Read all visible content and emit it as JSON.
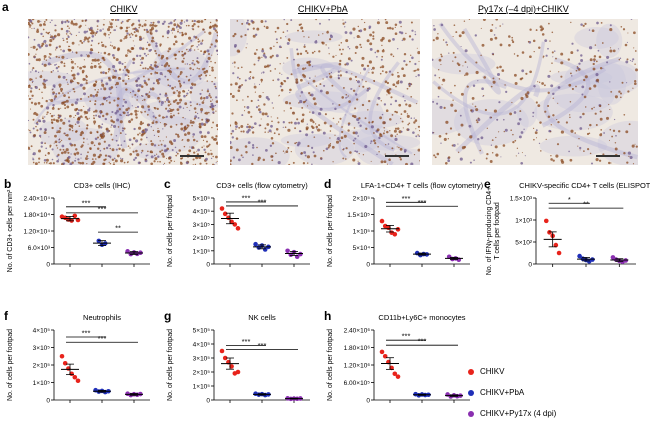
{
  "figure": {
    "panel_a_letter": "a",
    "micrographs": [
      {
        "label": "CHIKV",
        "tone": "dense"
      },
      {
        "label": "CHIKV+PbA",
        "tone": "medium"
      },
      {
        "label": "Py17x (–4 dpi)+CHIKV",
        "tone": "sparse"
      }
    ],
    "legend": [
      {
        "label": "CHIKV",
        "color": "#e8231b"
      },
      {
        "label": "CHIKV+PbA",
        "color": "#1f2fb8"
      },
      {
        "label": "CHIKV+Py17x (4 dpi)",
        "color": "#8a2fb0"
      }
    ]
  },
  "chart_data": [
    {
      "letter": "b",
      "type": "scatter",
      "title": "CD3+ cells (IHC)",
      "ylabel": "No. of CD3+ cells per mm²",
      "yticks": [
        "0",
        "6.0×10³",
        "1.20×10⁴",
        "1.80×10⁴",
        "2.40×10⁴"
      ],
      "ytick_values": [
        0,
        6000,
        12000,
        18000,
        24000
      ],
      "ylim": [
        0,
        24000
      ],
      "groups": [
        {
          "color": "#e8231b",
          "mean": 16500,
          "sem": 800,
          "points": [
            17200,
            16800,
            16200,
            15800,
            17500,
            16000
          ]
        },
        {
          "color": "#1f2fb8",
          "mean": 7600,
          "sem": 900,
          "points": [
            8400,
            7000,
            7500
          ]
        },
        {
          "color": "#8a2fb0",
          "mean": 4000,
          "sem": 500,
          "points": [
            4600,
            3600,
            4200,
            3700,
            4100
          ]
        }
      ],
      "significance": [
        {
          "from": 0,
          "to": 1,
          "label": "***",
          "y": 20800
        },
        {
          "from": 0,
          "to": 2,
          "label": "***",
          "y": 18600
        },
        {
          "from": 1,
          "to": 2,
          "label": "**",
          "y": 11600
        }
      ]
    },
    {
      "letter": "c",
      "type": "scatter",
      "title": "CD3+ cells (flow cytometry)",
      "ylabel": "No. of cells per footpad",
      "yticks": [
        "0",
        "1×10⁵",
        "2×10⁵",
        "3×10⁵",
        "4×10⁵",
        "5×10⁵"
      ],
      "ytick_values": [
        0,
        100000,
        200000,
        300000,
        400000,
        500000
      ],
      "ylim": [
        0,
        500000
      ],
      "groups": [
        {
          "color": "#e8231b",
          "mean": 345000,
          "sem": 40000,
          "points": [
            420000,
            380000,
            350000,
            320000,
            300000,
            270000
          ]
        },
        {
          "color": "#1f2fb8",
          "mean": 130000,
          "sem": 15000,
          "points": [
            150000,
            125000,
            140000,
            110000,
            130000
          ]
        },
        {
          "color": "#8a2fb0",
          "mean": 80000,
          "sem": 15000,
          "points": [
            100000,
            70000,
            90000,
            55000,
            75000
          ]
        }
      ],
      "significance": [
        {
          "from": 0,
          "to": 1,
          "label": "***",
          "y": 470000
        },
        {
          "from": 0,
          "to": 2,
          "label": "***",
          "y": 440000
        }
      ]
    },
    {
      "letter": "d",
      "type": "scatter",
      "title": "LFA-1+CD4+ T cells (flow cytometry)",
      "ylabel": "No. of cells per footpad",
      "yticks": [
        "0",
        "5×10⁴",
        "1×10⁵",
        "1.5×10⁵",
        "2×10⁵"
      ],
      "ytick_values": [
        0,
        50000,
        100000,
        150000,
        200000
      ],
      "ylim": [
        0,
        200000
      ],
      "groups": [
        {
          "color": "#e8231b",
          "mean": 107000,
          "sem": 10000,
          "points": [
            130000,
            115000,
            110000,
            95000,
            90000,
            105000
          ]
        },
        {
          "color": "#1f2fb8",
          "mean": 30000,
          "sem": 3000,
          "points": [
            33000,
            27000,
            30000,
            29000
          ]
        },
        {
          "color": "#8a2fb0",
          "mean": 17000,
          "sem": 3000,
          "points": [
            22000,
            15000,
            17000,
            13000
          ]
        }
      ],
      "significance": [
        {
          "from": 0,
          "to": 1,
          "label": "***",
          "y": 187000
        },
        {
          "from": 0,
          "to": 2,
          "label": "***",
          "y": 175000
        }
      ]
    },
    {
      "letter": "e",
      "type": "scatter",
      "title": "CHIKV-specific CD4+ T cells (ELISPOT)",
      "ylabel": "No. of IFNγ-producing CD4+ T cells per footpad",
      "yticks": [
        "0",
        "5×10²",
        "1×10³",
        "1.5×10³"
      ],
      "ytick_values": [
        0,
        500,
        1000,
        1500
      ],
      "ylim": [
        0,
        1500
      ],
      "groups": [
        {
          "color": "#e8231b",
          "mean": 560,
          "sem": 170,
          "points": [
            980,
            720,
            640,
            430,
            250
          ]
        },
        {
          "color": "#1f2fb8",
          "mean": 110,
          "sem": 40,
          "points": [
            180,
            120,
            90,
            60,
            100
          ]
        },
        {
          "color": "#8a2fb0",
          "mean": 90,
          "sem": 30,
          "points": [
            150,
            100,
            70,
            50,
            80
          ]
        }
      ],
      "significance": [
        {
          "from": 0,
          "to": 1,
          "label": "*",
          "y": 1380
        },
        {
          "from": 0,
          "to": 2,
          "label": "**",
          "y": 1270
        }
      ]
    },
    {
      "letter": "f",
      "type": "scatter",
      "title": "Neutrophils",
      "ylabel": "No. of cells per footpad",
      "yticks": [
        "0",
        "1×10⁵",
        "2×10⁵",
        "3×10⁵",
        "4×10⁵"
      ],
      "ytick_values": [
        0,
        100000,
        200000,
        300000,
        400000
      ],
      "ylim": [
        0,
        400000
      ],
      "groups": [
        {
          "color": "#e8231b",
          "mean": 175000,
          "sem": 30000,
          "points": [
            250000,
            210000,
            180000,
            150000,
            130000,
            110000
          ]
        },
        {
          "color": "#1f2fb8",
          "mean": 50000,
          "sem": 5000,
          "points": [
            56000,
            48000,
            52000,
            45000,
            50000
          ]
        },
        {
          "color": "#8a2fb0",
          "mean": 32000,
          "sem": 5000,
          "points": [
            36000,
            28000,
            33000,
            30000,
            34000
          ]
        }
      ],
      "significance": [
        {
          "from": 0,
          "to": 1,
          "label": "***",
          "y": 360000
        },
        {
          "from": 0,
          "to": 2,
          "label": "***",
          "y": 330000
        }
      ]
    },
    {
      "letter": "g",
      "type": "scatter",
      "title": "NK cells",
      "ylabel": "No. of cells per footpad",
      "yticks": [
        "0",
        "1×10⁵",
        "2×10⁵",
        "3×10⁵",
        "4×10⁵",
        "5×10⁵"
      ],
      "ytick_values": [
        0,
        100000,
        200000,
        300000,
        400000,
        500000
      ],
      "ylim": [
        0,
        500000
      ],
      "groups": [
        {
          "color": "#e8231b",
          "mean": 260000,
          "sem": 40000,
          "points": [
            350000,
            300000,
            270000,
            240000,
            190000,
            200000
          ]
        },
        {
          "color": "#1f2fb8",
          "mean": 40000,
          "sem": 5000,
          "points": [
            45000,
            38000,
            42000,
            35000,
            40000
          ]
        },
        {
          "color": "#8a2fb0",
          "mean": 10000,
          "sem": 3000,
          "points": [
            12000,
            8000,
            10000,
            9000,
            11000
          ]
        }
      ],
      "significance": [
        {
          "from": 0,
          "to": 1,
          "label": "***",
          "y": 390000
        },
        {
          "from": 0,
          "to": 2,
          "label": "***",
          "y": 360000
        }
      ]
    },
    {
      "letter": "h",
      "type": "scatter",
      "title": "CD11b+Ly6C+ monocytes",
      "ylabel": "No. of cells per footpad",
      "yticks": [
        "0",
        "6.00×10⁵",
        "1.20×10⁶",
        "1.80×10⁶",
        "2.40×10⁶"
      ],
      "ytick_values": [
        0,
        600000,
        1200000,
        1800000,
        2400000
      ],
      "ylim": [
        0,
        2400000
      ],
      "groups": [
        {
          "color": "#e8231b",
          "mean": 1250000,
          "sem": 200000,
          "points": [
            1650000,
            1500000,
            1300000,
            1100000,
            900000,
            800000
          ]
        },
        {
          "color": "#1f2fb8",
          "mean": 180000,
          "sem": 20000,
          "points": [
            200000,
            160000,
            190000,
            170000,
            180000
          ]
        },
        {
          "color": "#8a2fb0",
          "mean": 150000,
          "sem": 25000,
          "points": [
            190000,
            120000,
            160000,
            130000,
            150000
          ]
        }
      ],
      "significance": [
        {
          "from": 0,
          "to": 1,
          "label": "***",
          "y": 2050000
        },
        {
          "from": 0,
          "to": 2,
          "label": "***",
          "y": 1880000
        }
      ]
    }
  ]
}
